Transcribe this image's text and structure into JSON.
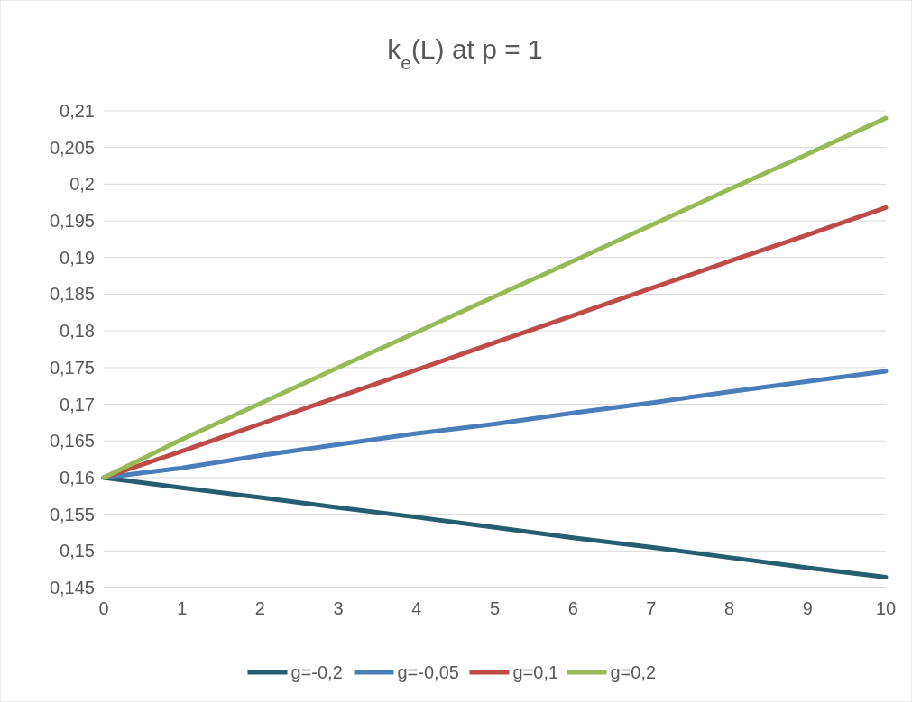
{
  "chart_data": {
    "type": "line",
    "title": "k$_{e}$(L) at p = 1",
    "x": [
      0,
      1,
      2,
      3,
      4,
      5,
      6,
      7,
      8,
      9,
      10
    ],
    "series": [
      {
        "name": "g=-0,2",
        "color": "#255e6e",
        "values": [
          0.16,
          0.1586,
          0.1573,
          0.1559,
          0.1546,
          0.1532,
          0.1518,
          0.1505,
          0.1491,
          0.1477,
          0.1464
        ]
      },
      {
        "name": "g=-0,05",
        "color": "#4a7ebb",
        "values": [
          0.16,
          0.1613,
          0.163,
          0.1645,
          0.166,
          0.1673,
          0.1688,
          0.1702,
          0.1717,
          0.1731,
          0.1745
        ]
      },
      {
        "name": "g=0,1",
        "color": "#be4b48",
        "values": [
          0.16,
          0.1636,
          0.1673,
          0.171,
          0.1747,
          0.1784,
          0.1821,
          0.1858,
          0.1895,
          0.1931,
          0.1968
        ]
      },
      {
        "name": "g=0,2",
        "color": "#98b954",
        "values": [
          0.16,
          0.1652,
          0.1701,
          0.175,
          0.1798,
          0.1847,
          0.1895,
          0.1944,
          0.1993,
          0.2041,
          0.209
        ]
      }
    ],
    "xlim": [
      0,
      10
    ],
    "xticks": [
      0,
      1,
      2,
      3,
      4,
      5,
      6,
      7,
      8,
      9,
      10
    ],
    "ylim": [
      0.145,
      0.21
    ],
    "yticks": [
      {
        "value": 0.145,
        "label": "0,145"
      },
      {
        "value": 0.15,
        "label": "0,15"
      },
      {
        "value": 0.155,
        "label": "0,155"
      },
      {
        "value": 0.16,
        "label": "0,16"
      },
      {
        "value": 0.165,
        "label": "0,165"
      },
      {
        "value": 0.17,
        "label": "0,17"
      },
      {
        "value": 0.175,
        "label": "0,175"
      },
      {
        "value": 0.18,
        "label": "0,18"
      },
      {
        "value": 0.185,
        "label": "0,185"
      },
      {
        "value": 0.19,
        "label": "0,19"
      },
      {
        "value": 0.195,
        "label": "0,195"
      },
      {
        "value": 0.2,
        "label": "0,2"
      },
      {
        "value": 0.205,
        "label": "0,205"
      },
      {
        "value": 0.21,
        "label": "0,21"
      }
    ],
    "grid": "y",
    "legend": "bottom",
    "marker": "none",
    "line_style": "solid"
  }
}
